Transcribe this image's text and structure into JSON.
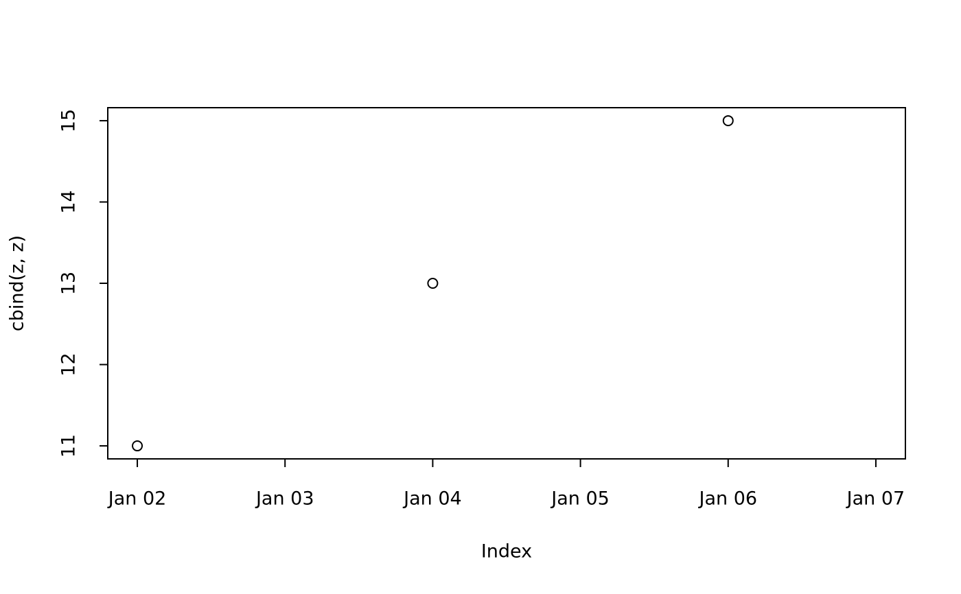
{
  "chart_data": {
    "type": "scatter",
    "x_label": "Index",
    "y_label": "cbind(z, z)",
    "x": [
      2,
      4,
      6
    ],
    "values": [
      11,
      13,
      15
    ],
    "xlim": [
      1.8,
      7.2
    ],
    "ylim": [
      10.84,
      15.16
    ],
    "xticks": [
      {
        "value": 2,
        "label": "Jan 02"
      },
      {
        "value": 3,
        "label": "Jan 03"
      },
      {
        "value": 4,
        "label": "Jan 04"
      },
      {
        "value": 5,
        "label": "Jan 05"
      },
      {
        "value": 6,
        "label": "Jan 06"
      },
      {
        "value": 7,
        "label": "Jan 07"
      }
    ],
    "yticks": [
      11,
      12,
      13,
      14,
      15
    ],
    "color": "#000000"
  }
}
